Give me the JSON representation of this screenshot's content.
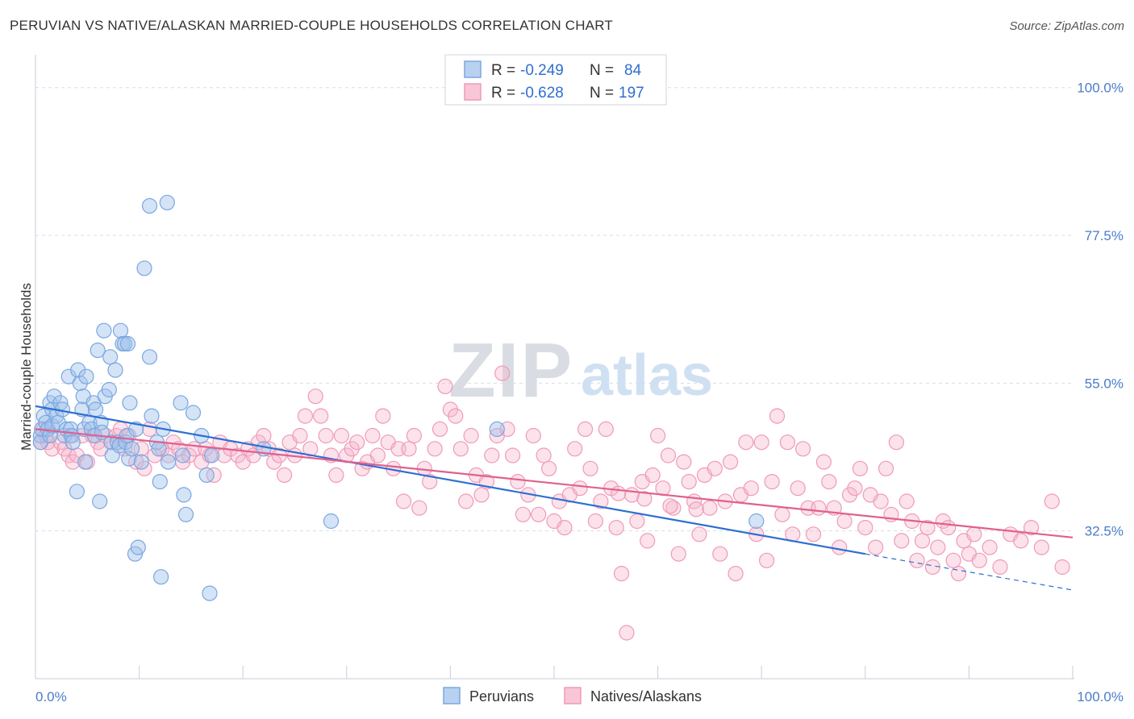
{
  "title": "PERUVIAN VS NATIVE/ALASKAN MARRIED-COUPLE HOUSEHOLDS CORRELATION CHART",
  "source": "Source: ZipAtlas.com",
  "watermark": {
    "zip": "ZIP",
    "atlas": "atlas"
  },
  "colors": {
    "peruvians": "#7aa7e0",
    "peruvians_line": "#2e6fd1",
    "natives": "#f09ab8",
    "natives_line": "#e0608e",
    "tick": "#4a7cc9",
    "grid": "#d8dde6"
  },
  "chart_data": {
    "type": "scatter",
    "title": "PERUVIAN VS NATIVE/ALASKAN MARRIED-COUPLE HOUSEHOLDS CORRELATION CHART",
    "xlabel": "",
    "ylabel": "Married-couple Households",
    "xlim": [
      0,
      100
    ],
    "ylim": [
      10,
      105
    ],
    "x_tick_labels": [
      "0.0%",
      "100.0%"
    ],
    "y_ticks": [
      32.5,
      55.0,
      77.5,
      100.0
    ],
    "y_tick_labels": [
      "32.5%",
      "55.0%",
      "77.5%",
      "100.0%"
    ],
    "grid": true,
    "legend_placement": "top-center",
    "legend": [
      {
        "r_label": "R =",
        "r": "-0.249",
        "n_label": "N =",
        "n": "84"
      },
      {
        "r_label": "R =",
        "r": "-0.628",
        "n_label": "N =",
        "n": "197"
      }
    ],
    "series": [
      {
        "name": "Peruvians",
        "trend": {
          "x": [
            0,
            80
          ],
          "y": [
            51.5,
            29.0
          ],
          "dashed_to": [
            100,
            23.5
          ]
        },
        "points": [
          [
            0.5,
            47
          ],
          [
            0.5,
            46
          ],
          [
            0.6,
            48
          ],
          [
            0.8,
            50
          ],
          [
            1.0,
            49
          ],
          [
            1.2,
            48
          ],
          [
            1.4,
            47
          ],
          [
            1.4,
            52
          ],
          [
            1.6,
            48.5
          ],
          [
            1.6,
            51
          ],
          [
            1.8,
            53
          ],
          [
            2.0,
            50
          ],
          [
            2.2,
            49
          ],
          [
            2.4,
            52
          ],
          [
            2.6,
            51
          ],
          [
            2.8,
            47
          ],
          [
            3.0,
            48
          ],
          [
            3.2,
            56
          ],
          [
            3.4,
            48
          ],
          [
            3.5,
            47
          ],
          [
            3.6,
            46
          ],
          [
            4.0,
            38.5
          ],
          [
            4.1,
            57
          ],
          [
            4.3,
            55
          ],
          [
            4.5,
            51
          ],
          [
            4.6,
            53
          ],
          [
            4.7,
            48
          ],
          [
            4.8,
            43
          ],
          [
            4.9,
            56
          ],
          [
            5.2,
            49
          ],
          [
            5.4,
            48
          ],
          [
            5.6,
            52
          ],
          [
            5.7,
            47
          ],
          [
            5.8,
            51
          ],
          [
            6.0,
            60
          ],
          [
            6.2,
            37
          ],
          [
            6.3,
            49
          ],
          [
            6.4,
            47.5
          ],
          [
            6.6,
            63
          ],
          [
            6.7,
            53
          ],
          [
            7.1,
            54
          ],
          [
            7.2,
            59
          ],
          [
            7.3,
            46
          ],
          [
            7.4,
            44
          ],
          [
            7.7,
            57
          ],
          [
            7.9,
            46
          ],
          [
            8.1,
            45.5
          ],
          [
            8.2,
            63
          ],
          [
            8.4,
            61
          ],
          [
            8.6,
            61
          ],
          [
            8.7,
            46
          ],
          [
            8.8,
            47
          ],
          [
            8.9,
            61
          ],
          [
            9.0,
            43.5
          ],
          [
            9.1,
            52
          ],
          [
            9.3,
            45
          ],
          [
            9.6,
            29
          ],
          [
            9.7,
            48
          ],
          [
            9.9,
            30
          ],
          [
            10.2,
            43
          ],
          [
            10.5,
            72.5
          ],
          [
            11.0,
            59
          ],
          [
            11.0,
            82
          ],
          [
            11.2,
            50
          ],
          [
            11.7,
            46
          ],
          [
            11.9,
            45
          ],
          [
            12.0,
            40
          ],
          [
            12.1,
            25.5
          ],
          [
            12.3,
            48
          ],
          [
            12.7,
            82.5
          ],
          [
            12.8,
            43
          ],
          [
            14.0,
            52
          ],
          [
            14.2,
            44
          ],
          [
            14.3,
            38
          ],
          [
            14.5,
            35
          ],
          [
            15.2,
            50.5
          ],
          [
            16.0,
            47
          ],
          [
            16.5,
            41
          ],
          [
            16.8,
            23
          ],
          [
            17.0,
            44
          ],
          [
            22.0,
            45
          ],
          [
            28.5,
            34
          ],
          [
            44.5,
            48
          ],
          [
            69.5,
            34
          ]
        ]
      },
      {
        "name": "Natives/Alaskans",
        "trend": {
          "x": [
            0,
            100
          ],
          "y": [
            48.0,
            31.5
          ]
        },
        "points": [
          [
            0.5,
            46
          ],
          [
            0.8,
            48
          ],
          [
            1.0,
            47
          ],
          [
            1.2,
            46
          ],
          [
            1.6,
            45
          ],
          [
            2.4,
            46
          ],
          [
            2.8,
            45
          ],
          [
            3.2,
            44
          ],
          [
            3.4,
            47
          ],
          [
            3.6,
            43
          ],
          [
            4.0,
            44
          ],
          [
            4.5,
            47
          ],
          [
            5.0,
            43
          ],
          [
            5.5,
            47
          ],
          [
            6.0,
            46
          ],
          [
            6.3,
            45
          ],
          [
            6.8,
            47
          ],
          [
            7.3,
            46
          ],
          [
            7.8,
            47
          ],
          [
            8.2,
            48
          ],
          [
            8.6,
            45
          ],
          [
            9.0,
            47
          ],
          [
            9.7,
            43
          ],
          [
            10.2,
            45
          ],
          [
            10.5,
            42
          ],
          [
            11.0,
            48
          ],
          [
            11.5,
            44
          ],
          [
            12.2,
            45
          ],
          [
            12.8,
            44
          ],
          [
            13.3,
            46
          ],
          [
            13.8,
            45
          ],
          [
            14.2,
            43
          ],
          [
            14.8,
            44
          ],
          [
            15.3,
            45
          ],
          [
            16.0,
            43
          ],
          [
            16.4,
            45
          ],
          [
            16.8,
            44
          ],
          [
            17.2,
            41
          ],
          [
            17.8,
            46
          ],
          [
            18.2,
            44
          ],
          [
            18.8,
            45
          ],
          [
            19.5,
            44
          ],
          [
            20.0,
            43
          ],
          [
            20.5,
            45
          ],
          [
            21.0,
            44
          ],
          [
            21.5,
            46
          ],
          [
            22.0,
            47
          ],
          [
            22.5,
            45
          ],
          [
            23.0,
            43
          ],
          [
            23.5,
            44
          ],
          [
            24.0,
            41
          ],
          [
            24.5,
            46
          ],
          [
            25.0,
            44
          ],
          [
            25.5,
            47
          ],
          [
            26.0,
            50
          ],
          [
            26.5,
            45
          ],
          [
            27.0,
            53
          ],
          [
            27.5,
            50
          ],
          [
            28.0,
            47
          ],
          [
            28.5,
            44
          ],
          [
            29.0,
            41
          ],
          [
            29.5,
            47
          ],
          [
            30.0,
            44
          ],
          [
            30.5,
            45
          ],
          [
            31.0,
            46
          ],
          [
            31.5,
            42
          ],
          [
            32.0,
            43
          ],
          [
            32.5,
            47
          ],
          [
            33.0,
            44
          ],
          [
            33.5,
            50
          ],
          [
            34.0,
            46
          ],
          [
            34.5,
            42
          ],
          [
            35.0,
            45
          ],
          [
            35.5,
            37
          ],
          [
            36.0,
            45
          ],
          [
            36.5,
            47
          ],
          [
            37.0,
            36
          ],
          [
            37.5,
            42
          ],
          [
            38.0,
            40
          ],
          [
            38.5,
            45
          ],
          [
            39.0,
            48
          ],
          [
            39.5,
            54.5
          ],
          [
            40.0,
            51
          ],
          [
            40.5,
            50
          ],
          [
            41.0,
            45
          ],
          [
            41.5,
            37
          ],
          [
            42.0,
            47
          ],
          [
            42.5,
            41
          ],
          [
            43.0,
            38
          ],
          [
            43.5,
            40
          ],
          [
            44.0,
            44
          ],
          [
            44.5,
            47
          ],
          [
            45.0,
            56.5
          ],
          [
            45.5,
            48
          ],
          [
            46.0,
            44
          ],
          [
            46.5,
            40
          ],
          [
            47.0,
            35
          ],
          [
            47.5,
            38
          ],
          [
            48.0,
            47
          ],
          [
            48.5,
            35
          ],
          [
            49.0,
            44
          ],
          [
            49.5,
            42
          ],
          [
            50.0,
            34
          ],
          [
            50.5,
            37
          ],
          [
            51.0,
            33
          ],
          [
            51.5,
            38
          ],
          [
            52.0,
            45
          ],
          [
            52.5,
            39
          ],
          [
            53.0,
            48
          ],
          [
            53.5,
            42
          ],
          [
            54.0,
            34
          ],
          [
            54.5,
            37
          ],
          [
            55.0,
            48
          ],
          [
            55.5,
            39
          ],
          [
            56.0,
            33
          ],
          [
            56.5,
            26
          ],
          [
            57.0,
            17
          ],
          [
            57.5,
            38
          ],
          [
            58.0,
            34
          ],
          [
            58.5,
            40
          ],
          [
            59.0,
            31
          ],
          [
            59.5,
            41
          ],
          [
            60.0,
            47
          ],
          [
            60.5,
            39
          ],
          [
            61.0,
            44
          ],
          [
            61.5,
            36
          ],
          [
            62.0,
            29
          ],
          [
            62.5,
            43
          ],
          [
            63.0,
            40
          ],
          [
            63.5,
            37
          ],
          [
            64.0,
            32
          ],
          [
            64.5,
            41
          ],
          [
            65.0,
            36
          ],
          [
            65.5,
            42
          ],
          [
            66.0,
            29
          ],
          [
            66.5,
            37
          ],
          [
            67.0,
            43
          ],
          [
            67.5,
            26
          ],
          [
            68.0,
            38
          ],
          [
            68.5,
            46
          ],
          [
            69.0,
            39
          ],
          [
            69.5,
            32
          ],
          [
            70.0,
            46
          ],
          [
            70.5,
            28
          ],
          [
            71.0,
            40
          ],
          [
            71.5,
            50
          ],
          [
            72.0,
            35
          ],
          [
            72.5,
            46
          ],
          [
            73.0,
            32
          ],
          [
            73.5,
            39
          ],
          [
            74.0,
            45
          ],
          [
            74.5,
            36
          ],
          [
            75.0,
            32
          ],
          [
            75.5,
            36
          ],
          [
            76.0,
            43
          ],
          [
            76.5,
            40
          ],
          [
            77.0,
            36
          ],
          [
            77.5,
            30
          ],
          [
            78.0,
            34
          ],
          [
            78.5,
            38
          ],
          [
            79.0,
            39
          ],
          [
            79.5,
            42
          ],
          [
            80.0,
            33
          ],
          [
            80.5,
            38
          ],
          [
            81.0,
            30
          ],
          [
            81.5,
            37
          ],
          [
            82.0,
            42
          ],
          [
            82.5,
            35
          ],
          [
            83.0,
            46
          ],
          [
            83.5,
            31
          ],
          [
            84.0,
            37
          ],
          [
            84.5,
            34
          ],
          [
            85.0,
            28
          ],
          [
            85.5,
            31
          ],
          [
            86.0,
            33
          ],
          [
            86.5,
            27
          ],
          [
            87.0,
            30
          ],
          [
            87.5,
            34
          ],
          [
            88.0,
            33
          ],
          [
            88.5,
            28
          ],
          [
            89.0,
            26
          ],
          [
            89.5,
            31
          ],
          [
            90.0,
            29
          ],
          [
            90.5,
            32
          ],
          [
            91.0,
            28
          ],
          [
            92.0,
            30
          ],
          [
            93.0,
            27
          ],
          [
            94.0,
            32
          ],
          [
            95.0,
            31
          ],
          [
            96.0,
            33
          ],
          [
            97.0,
            30
          ],
          [
            98.0,
            37
          ],
          [
            99.0,
            27
          ],
          [
            56.2,
            38.2
          ],
          [
            58.7,
            37.4
          ],
          [
            61.2,
            36.3
          ],
          [
            63.7,
            35.8
          ]
        ]
      }
    ]
  },
  "bottom_legend": [
    "Peruvians",
    "Natives/Alaskans"
  ]
}
